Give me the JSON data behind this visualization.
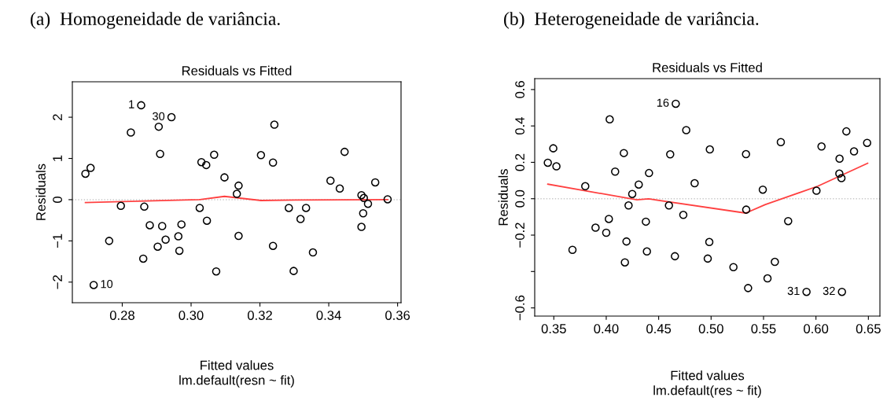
{
  "chart_data": [
    {
      "type": "scatter",
      "title": "(a)  Homogeneidade de variância.",
      "subtitle": "Residuals vs Fitted",
      "xlabel": "Fitted values",
      "ylabel": "Residuals",
      "annotations": [
        "lm.default(resn ~ fit)",
        {
          "text": "1",
          "x": 0.2855,
          "y": 2.29
        },
        {
          "text": "30",
          "x": 0.2943,
          "y": 2.0
        },
        {
          "text": "10",
          "x": 0.2717,
          "y": -2.07
        }
      ],
      "marker": "circle",
      "grid": false,
      "xlim": [
        0.2655,
        0.361
      ],
      "ylim": [
        -2.5,
        2.86
      ],
      "xticks": [
        0.28,
        {
          "value": 0.3,
          "label": "0.30"
        },
        0.32,
        0.34,
        {
          "value": 0.36,
          "label": "0.36"
        }
      ],
      "yticks": [
        {
          "value": -2,
          "label": "−2"
        },
        {
          "value": -1,
          "label": "−1"
        },
        0,
        1,
        2
      ],
      "ref_lines": [
        {
          "axis": "y",
          "value": 0,
          "label": null,
          "color": "#c8c8c8",
          "line_style": "dotted"
        }
      ],
      "series": [
        {
          "color": "#000000",
          "x": [
            0.2693,
            0.2708,
            0.2855,
            0.2943,
            0.2906,
            0.2825,
            0.291,
            0.3242,
            0.3446,
            0.3067,
            0.3203,
            0.303,
            0.3044,
            0.3238,
            0.3097,
            0.3138,
            0.3133,
            0.3405,
            0.3432,
            0.3535,
            0.3495,
            0.3502,
            0.3571,
            0.3514,
            0.35,
            0.3495,
            0.2796,
            0.2864,
            0.3025,
            0.3284,
            0.3334,
            0.3318,
            0.3046,
            0.288,
            0.2916,
            0.2972,
            0.2963,
            0.2926,
            0.2762,
            0.2903,
            0.2966,
            0.3138,
            0.3238,
            0.3354,
            0.2861,
            0.3073,
            0.3298,
            0.2717
          ],
          "values": [
            0.63,
            0.77,
            2.29,
            2.0,
            1.77,
            1.63,
            1.11,
            1.82,
            1.16,
            1.09,
            1.08,
            0.91,
            0.84,
            0.9,
            0.54,
            0.34,
            0.14,
            0.46,
            0.27,
            0.42,
            0.11,
            0.04,
            0.01,
            -0.1,
            -0.33,
            -0.66,
            -0.15,
            -0.17,
            -0.2,
            -0.2,
            -0.2,
            -0.47,
            -0.51,
            -0.62,
            -0.64,
            -0.6,
            -0.89,
            -0.97,
            -1.0,
            -1.14,
            -1.24,
            -0.88,
            -1.12,
            -1.28,
            -1.43,
            -1.74,
            -1.73,
            -2.07
          ]
        },
        {
          "type": "line",
          "color": "#ff4040",
          "marker": "none",
          "line_style": "solid",
          "x": [
            0.2693,
            0.3023,
            0.3097,
            0.3203,
            0.3303,
            0.3571
          ],
          "values": [
            -0.07,
            0.0,
            0.08,
            -0.02,
            -0.01,
            0.0
          ]
        }
      ]
    },
    {
      "type": "scatter",
      "title": "(b)  Heterogeneidade de variância.",
      "subtitle": "Residuals vs Fitted",
      "xlabel": "Fitted values",
      "ylabel": "Residuals",
      "annotations": [
        "lm.default(res ~ fit)",
        {
          "text": "16",
          "x": 0.4663,
          "y": 0.522
        },
        {
          "text": "31",
          "x": 0.591,
          "y": -0.512
        },
        {
          "text": "32",
          "x": 0.6248,
          "y": -0.512
        }
      ],
      "marker": "circle",
      "grid": false,
      "xlim": [
        0.3318,
        0.661
      ],
      "ylim": [
        -0.645,
        0.66
      ],
      "xticks": [
        0.35,
        {
          "value": 0.4,
          "label": "0.40"
        },
        0.45,
        {
          "value": 0.5,
          "label": "0.50"
        },
        0.55,
        {
          "value": 0.6,
          "label": "0.60"
        },
        0.65
      ],
      "yticks": [
        {
          "value": -0.6,
          "label": "−0.6"
        },
        {
          "value": -0.4,
          "label": null
        },
        {
          "value": -0.2,
          "label": "−0.2"
        },
        {
          "value": 0,
          "label": "0.0"
        },
        0.2,
        0.4,
        0.6
      ],
      "ref_lines": [
        {
          "axis": "y",
          "value": 0,
          "label": null,
          "color": "#c8c8c8",
          "line_style": "dotted"
        }
      ],
      "series": [
        {
          "color": "#000000",
          "x": [
            0.3443,
            0.3495,
            0.3525,
            0.3678,
            0.38,
            0.3898,
            0.4,
            0.4025,
            0.4033,
            0.4085,
            0.4168,
            0.4178,
            0.4193,
            0.4213,
            0.4248,
            0.431,
            0.4378,
            0.4388,
            0.4408,
            0.4598,
            0.461,
            0.4655,
            0.4663,
            0.4735,
            0.4763,
            0.4843,
            0.4968,
            0.4983,
            0.4988,
            0.5213,
            0.5333,
            0.5335,
            0.5353,
            0.5493,
            0.5538,
            0.5608,
            0.5665,
            0.5735,
            0.591,
            0.6005,
            0.6053,
            0.6225,
            0.6223,
            0.6243,
            0.6248,
            0.629,
            0.6363,
            0.6488
          ],
          "values": [
            0.198,
            0.277,
            0.178,
            -0.281,
            0.069,
            -0.159,
            -0.187,
            -0.111,
            0.436,
            0.149,
            0.251,
            -0.35,
            -0.235,
            -0.037,
            0.026,
            0.078,
            -0.126,
            -0.29,
            0.141,
            -0.037,
            0.244,
            -0.316,
            0.522,
            -0.089,
            0.377,
            0.085,
            -0.329,
            -0.238,
            0.271,
            -0.376,
            0.245,
            -0.06,
            -0.491,
            0.05,
            -0.438,
            -0.347,
            0.311,
            -0.123,
            -0.512,
            0.044,
            0.287,
            0.22,
            0.138,
            0.113,
            -0.512,
            0.37,
            0.26,
            0.307
          ]
        },
        {
          "type": "line",
          "color": "#ff4040",
          "marker": "none",
          "line_style": "solid",
          "x": [
            0.3443,
            0.4293,
            0.4405,
            0.533,
            0.5518,
            0.6018,
            0.6493
          ],
          "values": [
            0.08,
            -0.006,
            -0.001,
            -0.079,
            -0.032,
            0.069,
            0.195
          ]
        }
      ]
    }
  ]
}
